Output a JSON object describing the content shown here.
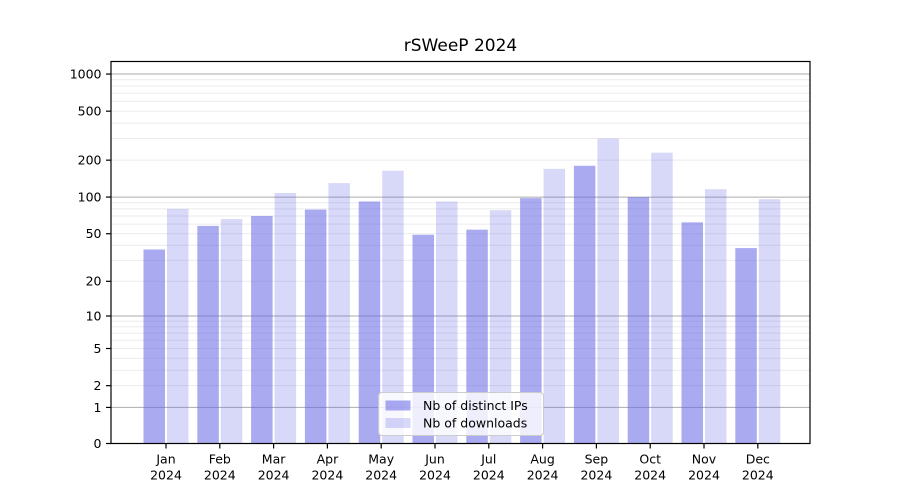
{
  "chart_data": {
    "type": "bar",
    "title": "rSWeeP 2024",
    "x_categories": [
      "Jan",
      "Feb",
      "Mar",
      "Apr",
      "May",
      "Jun",
      "Jul",
      "Aug",
      "Sep",
      "Oct",
      "Nov",
      "Dec"
    ],
    "x_year": "2024",
    "series": [
      {
        "name": "Nb of distinct IPs",
        "color": "rgba(100,100,230,0.55)",
        "values": [
          37,
          58,
          70,
          79,
          92,
          49,
          54,
          98,
          180,
          100,
          62,
          38
        ]
      },
      {
        "name": "Nb of downloads",
        "color": "rgba(100,100,230,0.25)",
        "values": [
          80,
          66,
          108,
          130,
          164,
          92,
          78,
          170,
          300,
          230,
          116,
          96
        ]
      }
    ],
    "y_ticks": [
      0,
      1,
      2,
      5,
      10,
      20,
      50,
      100,
      200,
      500,
      1000
    ],
    "y_scale": "log1p",
    "ylim": [
      0,
      1000
    ],
    "grid": true,
    "legend_position": "lower-center-inside",
    "colors": {
      "grid_major": "#ababab",
      "grid_minor": "#ebebeb",
      "axis": "#000000",
      "legend_border": "#cccccc",
      "legend_background": "rgba(255,255,255,0.8)"
    }
  }
}
